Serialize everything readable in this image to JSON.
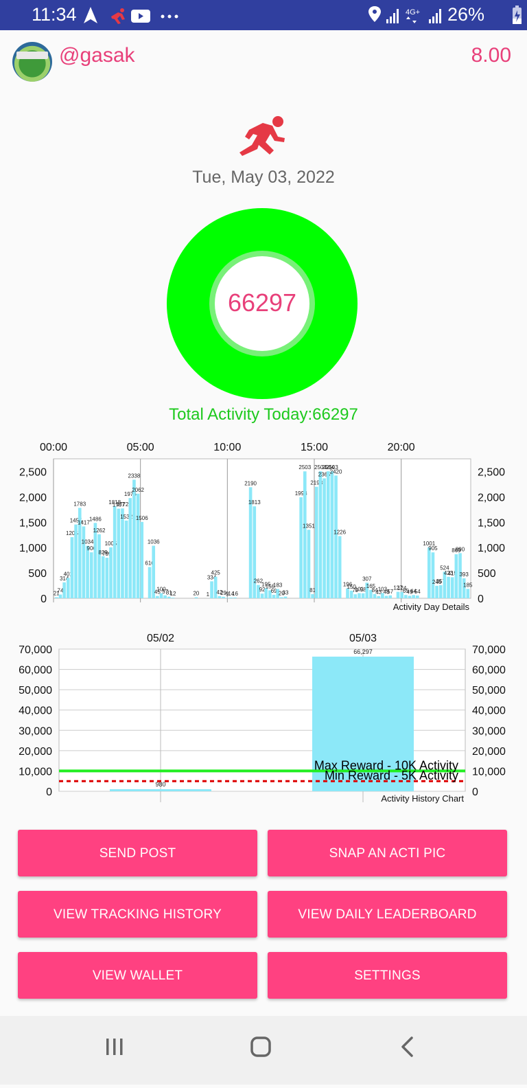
{
  "status_bar": {
    "time": "11:34",
    "battery": "26%",
    "icons_left": [
      "navigation-icon",
      "runner-notification-icon",
      "youtube-icon",
      "more-dots-icon"
    ],
    "icons_right": [
      "location-icon",
      "signal-icon",
      "4g-icon",
      "signal-icon",
      "battery-charging-icon"
    ]
  },
  "header": {
    "username": "@gasak",
    "balance": "8.00"
  },
  "activity": {
    "date": "Tue, May 03, 2022",
    "total_number": "66297",
    "total_text": "Total Activity Today:66297"
  },
  "colors": {
    "status_bar": "#303f9f",
    "accent_pink": "#e8407a",
    "button_pink": "#ff4181",
    "ring_green": "#00ff00",
    "bar_cyan": "#8ce8f8",
    "max_line": "#22ee22",
    "min_line": "#dd0000"
  },
  "chart_data": [
    {
      "type": "bar",
      "title": "Activity Day Details",
      "x_tick_labels": [
        "00:00",
        "05:00",
        "10:00",
        "15:00",
        "20:00"
      ],
      "ylim": [
        0,
        2750
      ],
      "y_ticks": [
        "2,500",
        "2,000",
        "1,500",
        "1,000",
        "500",
        "0"
      ],
      "y_tick_values": [
        2500,
        2000,
        1500,
        1000,
        500,
        0
      ],
      "values": [
        21,
        74,
        314,
        401,
        1205,
        1455,
        1783,
        1417,
        1034,
        906,
        1486,
        1262,
        829,
        799,
        1005,
        1818,
        1767,
        1772,
        1532,
        1976,
        2338,
        2062,
        1506,
        0,
        616,
        1036,
        45,
        100,
        57,
        31,
        12,
        0,
        0,
        0,
        0,
        0,
        20,
        0,
        0,
        1,
        334,
        425,
        42,
        29,
        9,
        14,
        16,
        0,
        0,
        0,
        2190,
        1813,
        262,
        92,
        195,
        156,
        69,
        183,
        20,
        33,
        0,
        0,
        0,
        1993,
        2503,
        1351,
        81,
        2198,
        2504,
        2365,
        2504,
        2503,
        2420,
        1226,
        0,
        196,
        150,
        79,
        101,
        98,
        307,
        165,
        84,
        43,
        103,
        48,
        57,
        0,
        127,
        124,
        65,
        49,
        64,
        54,
        0,
        0,
        1001,
        905,
        246,
        257,
        524,
        423,
        415,
        869,
        890,
        393,
        185
      ],
      "value_labels": [
        "21",
        "74",
        "314",
        "401",
        "1205",
        "1455",
        "1783",
        "1417",
        "1034",
        "906",
        "1486",
        "1262",
        "829",
        "799",
        "1005",
        "1818",
        "1767",
        "1772",
        "1532",
        "1976",
        "2338",
        "2062",
        "1506",
        "",
        "616",
        "1036",
        "45",
        "100",
        "57",
        "31",
        "12",
        "",
        "",
        "",
        "",
        "",
        "20",
        "",
        "",
        "1",
        "334",
        "425",
        "42",
        "29",
        "9",
        "14",
        "16",
        "",
        "",
        "",
        "2190",
        "1813",
        "262",
        "92",
        "195",
        "156",
        "69",
        "183",
        "20",
        "33",
        "",
        "",
        "",
        "1993",
        "2503",
        "1351",
        "81",
        "2198",
        "2504",
        "2365",
        "2504",
        "2503",
        "2420",
        "1226",
        "",
        "196",
        "150",
        "79",
        "101",
        "98",
        "307",
        "165",
        "84",
        "43",
        "103",
        "48",
        "57",
        "",
        "127",
        "124",
        "65",
        "49",
        "64",
        "54",
        "",
        "",
        "1001",
        "905",
        "246",
        "257",
        "524",
        "423",
        "415",
        "869",
        "890",
        "393",
        "185"
      ]
    },
    {
      "type": "bar",
      "title": "Activity History Chart",
      "categories": [
        "05/02",
        "05/03"
      ],
      "values": [
        980,
        66297
      ],
      "value_labels": [
        "980",
        "66,297"
      ],
      "ylim": [
        0,
        70000
      ],
      "y_ticks": [
        "70,000",
        "60,000",
        "50,000",
        "40,000",
        "30,000",
        "20,000",
        "10,000",
        "0"
      ],
      "y_tick_values": [
        70000,
        60000,
        50000,
        40000,
        30000,
        20000,
        10000,
        0
      ],
      "reference_lines": [
        {
          "label": "Max Reward - 10K Activity",
          "value": 10000,
          "style": "solid"
        },
        {
          "label": "Min Reward - 5K Activity",
          "value": 5000,
          "style": "dashed"
        }
      ]
    }
  ],
  "buttons": {
    "send_post": "SEND POST",
    "snap_pic": "SNAP AN ACTI PIC",
    "tracking_history": "VIEW TRACKING HISTORY",
    "daily_leaderboard": "VIEW DAILY LEADERBOARD",
    "wallet": "VIEW WALLET",
    "settings": "SETTINGS"
  },
  "nav_bar": {
    "icons": [
      "recent-apps-icon",
      "home-icon",
      "back-icon"
    ]
  }
}
